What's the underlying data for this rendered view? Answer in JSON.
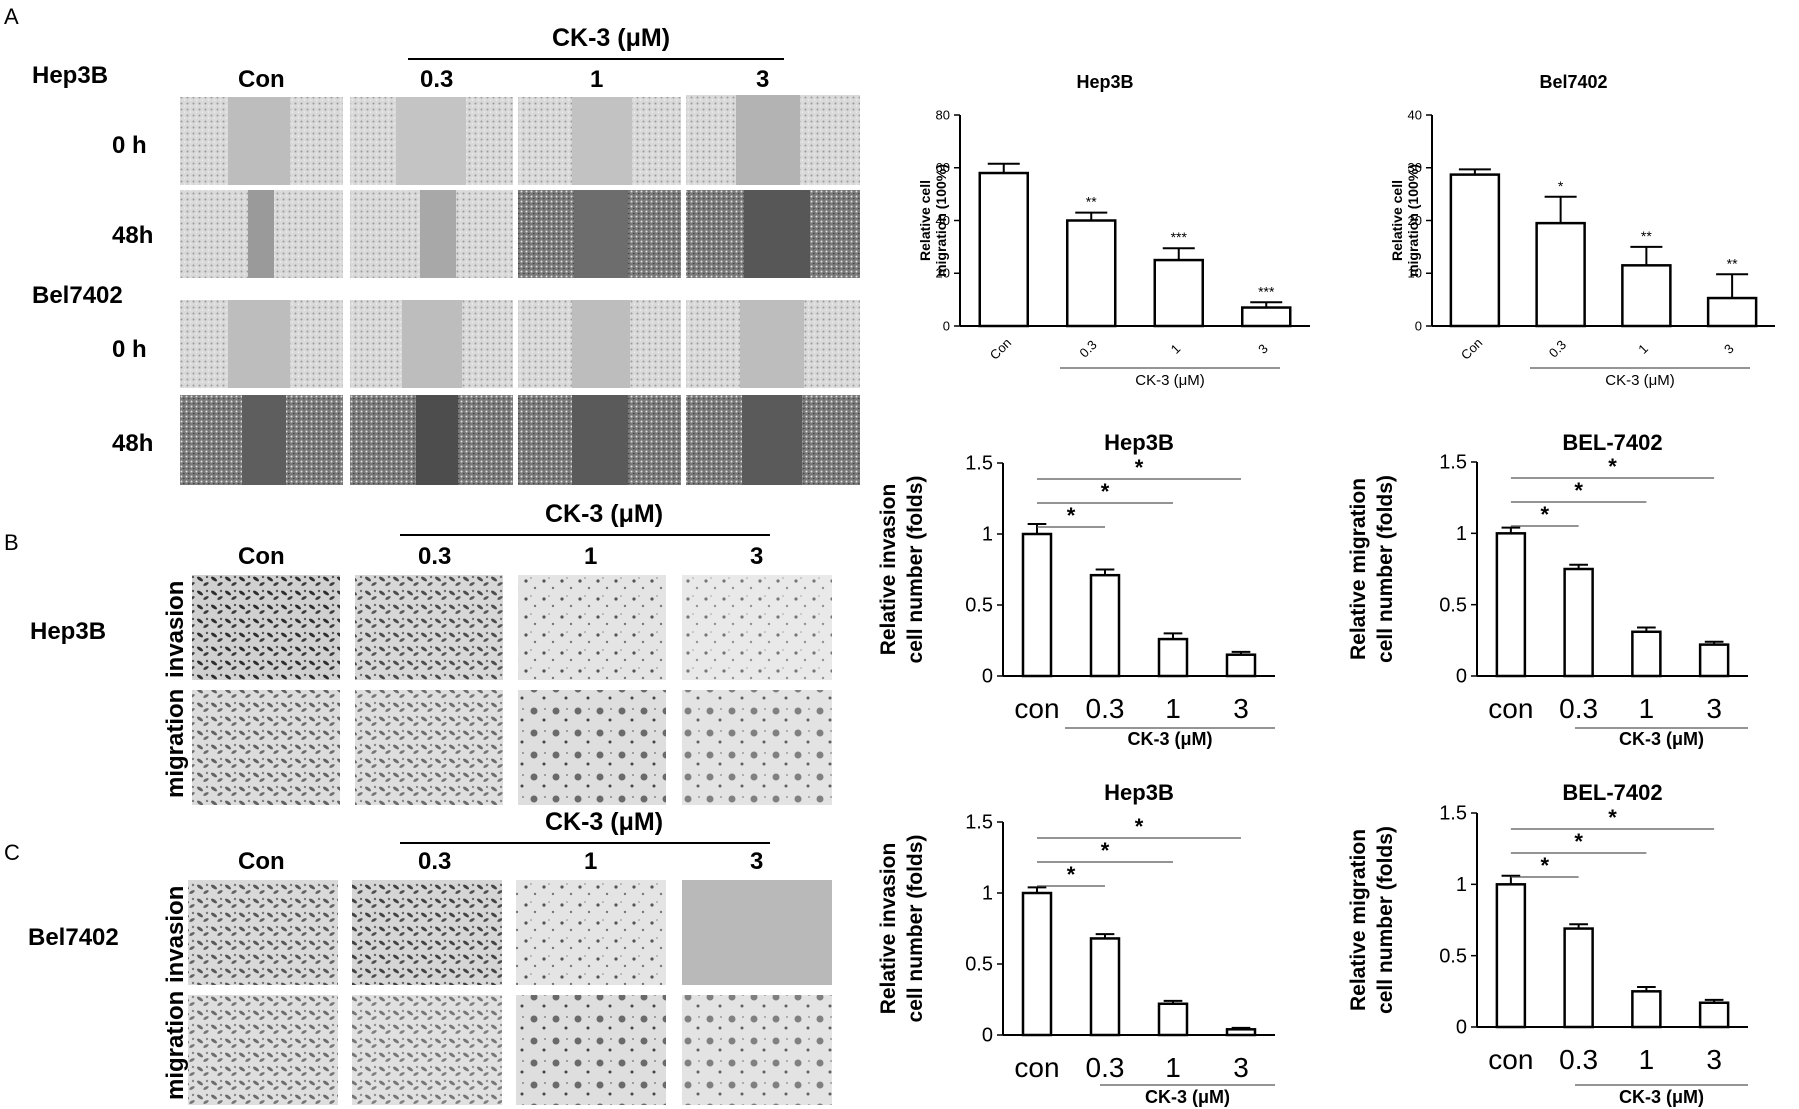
{
  "panel_A": {
    "letter": "A",
    "treatment_label": "CK-3 (μM)",
    "conditions": [
      "Con",
      "0.3",
      "1",
      "3"
    ],
    "lines": [
      {
        "name": "Hep3B",
        "times": [
          "0 h",
          "48h"
        ]
      },
      {
        "name": "Bel7402",
        "times": [
          "0 h",
          "48h"
        ]
      }
    ]
  },
  "panel_B": {
    "letter": "B",
    "treatment_label": "CK-3 (μM)",
    "conditions": [
      "Con",
      "0.3",
      "1",
      "3"
    ],
    "line": "Hep3B",
    "rows": [
      "invasion",
      "migration"
    ]
  },
  "panel_C": {
    "letter": "C",
    "treatment_label": "CK-3 (μM)",
    "conditions": [
      "Con",
      "0.3",
      "1",
      "3"
    ],
    "line": "Bel7402",
    "rows": [
      "invasion",
      "migration"
    ]
  },
  "colors": {
    "bar_fill": "#ffffff",
    "stroke": "#000000",
    "well_light": "#c8c8c8",
    "well_dark": "#5a5a5a"
  },
  "chart_data": [
    {
      "type": "bar",
      "title": "Hep3B",
      "categories": [
        "Con",
        "0.3",
        "1",
        "3"
      ],
      "values": [
        58,
        40,
        25,
        7
      ],
      "errors": [
        3.5,
        3,
        4.5,
        2
      ],
      "significance": [
        "",
        "**",
        "***",
        "***"
      ],
      "ylabel": "Relative cell migration (100%)",
      "xlabel": "CK-3 (μM)",
      "ylim": [
        0,
        80
      ],
      "yticks": [
        "0",
        "20",
        "40",
        "60",
        "80"
      ]
    },
    {
      "type": "bar",
      "title": "Bel7402",
      "categories": [
        "Con",
        "0.3",
        "1",
        "3"
      ],
      "values": [
        28.7,
        19.5,
        11.5,
        5.3
      ],
      "errors": [
        1,
        5,
        3.5,
        4.5
      ],
      "significance": [
        "",
        "*",
        "**",
        "**"
      ],
      "ylabel": "Relative cell migration (100%)",
      "xlabel": "CK-3 (μM)",
      "ylim": [
        0,
        40
      ],
      "yticks": [
        "0",
        "10",
        "20",
        "30",
        "40"
      ]
    },
    {
      "type": "bar",
      "title": "Hep3B",
      "categories": [
        "con",
        "0.3",
        "1",
        "3"
      ],
      "values": [
        1.0,
        0.71,
        0.26,
        0.15
      ],
      "errors": [
        0.07,
        0.04,
        0.04,
        0.02
      ],
      "brackets": [
        "*",
        "*",
        "*"
      ],
      "ylabel": "Relative invasion cell number (folds)",
      "xlabel": "CK-3 (μM)",
      "ylim": [
        0,
        1.5
      ],
      "yticks": [
        "0",
        "0.5",
        "1",
        "1.5"
      ]
    },
    {
      "type": "bar",
      "title": "BEL-7402",
      "categories": [
        "con",
        "0.3",
        "1",
        "3"
      ],
      "values": [
        1.0,
        0.75,
        0.31,
        0.22
      ],
      "errors": [
        0.04,
        0.03,
        0.03,
        0.02
      ],
      "brackets": [
        "*",
        "*",
        "*"
      ],
      "ylabel": "Relative migration cell number (folds)",
      "xlabel": "CK-3 (μM)",
      "ylim": [
        0,
        1.5
      ],
      "yticks": [
        "0",
        "0.5",
        "1",
        "1.5"
      ]
    },
    {
      "type": "bar",
      "title": "Hep3B",
      "categories": [
        "con",
        "0.3",
        "1",
        "3"
      ],
      "values": [
        1.0,
        0.68,
        0.22,
        0.04
      ],
      "errors": [
        0.04,
        0.03,
        0.02,
        0.01
      ],
      "brackets": [
        "*",
        "*",
        "*"
      ],
      "ylabel": "Relative invasion cell number (folds)",
      "xlabel": "CK-3 (μM)",
      "ylim": [
        0,
        1.5
      ],
      "yticks": [
        "0",
        "0.5",
        "1",
        "1.5"
      ]
    },
    {
      "type": "bar",
      "title": "BEL-7402",
      "categories": [
        "con",
        "0.3",
        "1",
        "3"
      ],
      "values": [
        1.0,
        0.69,
        0.25,
        0.17
      ],
      "errors": [
        0.06,
        0.03,
        0.03,
        0.02
      ],
      "brackets": [
        "*",
        "*",
        "*"
      ],
      "ylabel": "Relative migration cell number (folds)",
      "xlabel": "CK-3 (μM)",
      "ylim": [
        0,
        1.5
      ],
      "yticks": [
        "0",
        "0.5",
        "1",
        "1.5"
      ]
    }
  ]
}
